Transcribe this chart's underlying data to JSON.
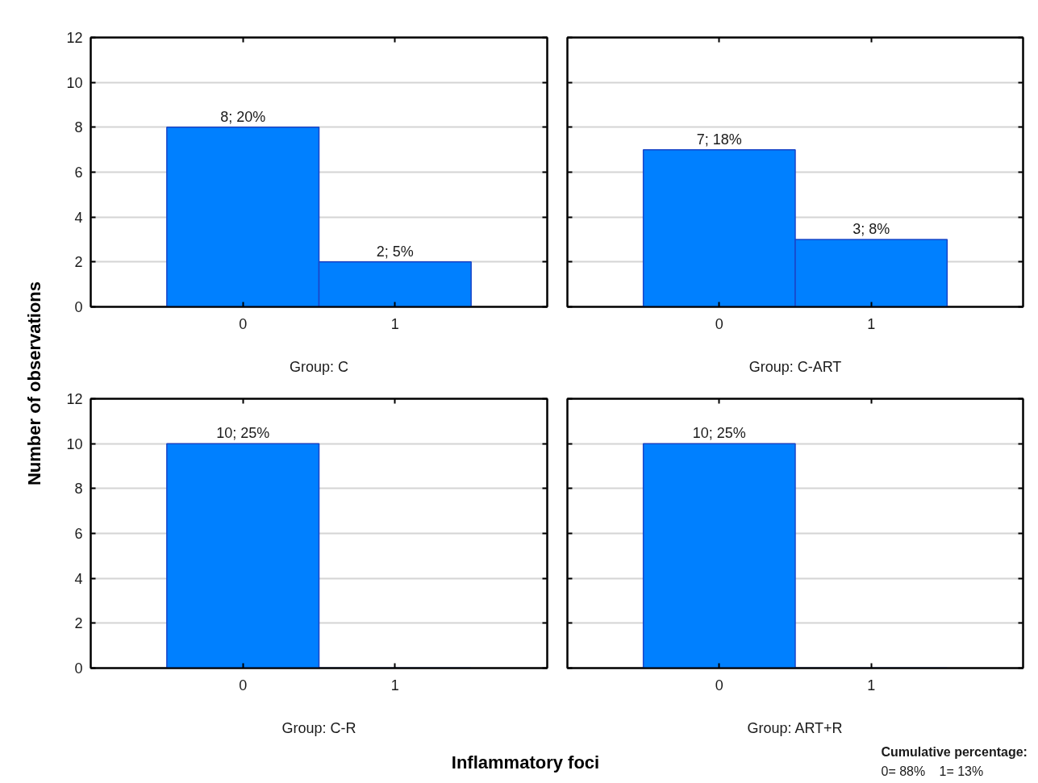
{
  "chart_data": [
    {
      "type": "bar",
      "title": "Group: C",
      "ylabel": "Number of observations",
      "categories": [
        "0",
        "1"
      ],
      "values": [
        8,
        2
      ],
      "value_labels": [
        "8; 20%",
        "2; 5%"
      ],
      "color": "#0080ff",
      "ylim": [
        0,
        12
      ],
      "yticks": [
        0,
        2,
        4,
        6,
        8,
        10,
        12
      ],
      "grid": "y"
    },
    {
      "type": "bar",
      "title": "Group: C-ART",
      "categories": [
        "0",
        "1"
      ],
      "values": [
        7,
        3
      ],
      "value_labels": [
        "7; 18%",
        "3; 8%"
      ],
      "color": "#0080ff",
      "ylim": [
        0,
        12
      ],
      "yticks": [
        0,
        2,
        4,
        6,
        8,
        10,
        12
      ],
      "grid": "y",
      "tick_labels": "x"
    },
    {
      "type": "bar",
      "title": "Group: C-R",
      "xlabel": "Inflammatory foci",
      "categories": [
        "0",
        "1"
      ],
      "values": [
        10,
        0
      ],
      "value_labels": [
        "10; 25%",
        null
      ],
      "color": "#0080ff",
      "ylim": [
        0,
        12
      ],
      "yticks": [
        0,
        2,
        4,
        6,
        8,
        10,
        12
      ],
      "grid": "y"
    },
    {
      "type": "bar",
      "title": "Group: ART+R",
      "categories": [
        "0",
        "1"
      ],
      "values": [
        10,
        0
      ],
      "value_labels": [
        "10; 25%",
        null
      ],
      "color": "#0080ff",
      "ylim": [
        0,
        12
      ],
      "yticks": [
        0,
        2,
        4,
        6,
        8,
        10,
        12
      ],
      "grid": "y",
      "tick_labels": "x",
      "annotations": [
        "Cumulative percentage:",
        "0= 88%",
        "1= 13%"
      ]
    }
  ]
}
